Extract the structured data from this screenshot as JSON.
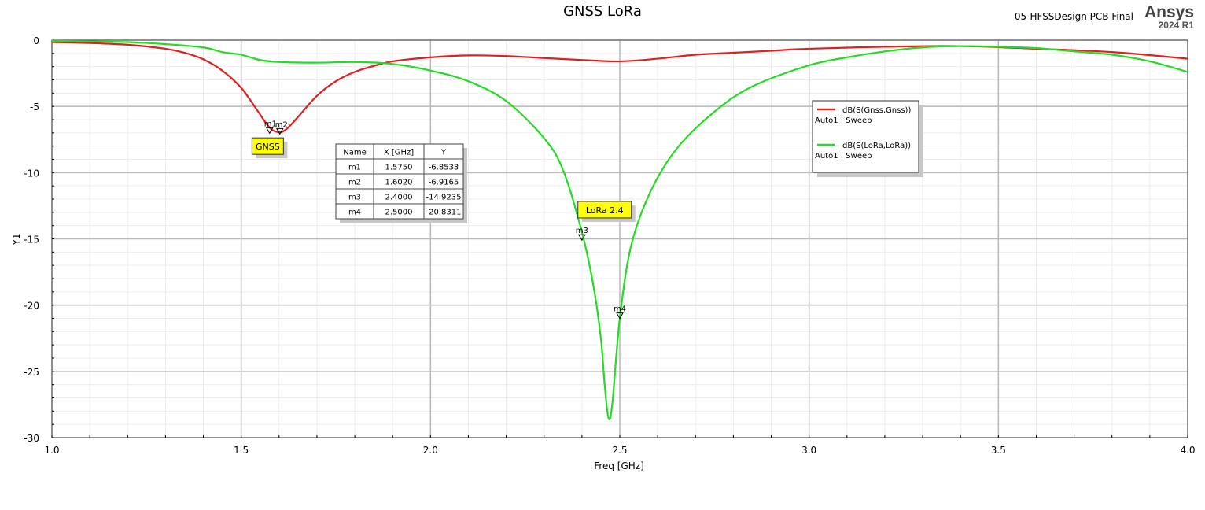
{
  "header": {
    "design_name": "05-HFSSDesign PCB Final",
    "brand": "Ansys",
    "version": "2024 R1"
  },
  "chart_data": {
    "type": "line",
    "title": "GNSS LoRa",
    "xlabel": "Freq [GHz]",
    "ylabel": "Y1",
    "xlim": [
      1.0,
      4.0
    ],
    "ylim": [
      -30,
      0
    ],
    "x_ticks": [
      "1.0",
      "1.5",
      "2.0",
      "2.5",
      "3.0",
      "3.5",
      "4.0"
    ],
    "y_ticks": [
      "0",
      "-5",
      "-10",
      "-15",
      "-20",
      "-25",
      "-30"
    ],
    "grid": true,
    "legend_position": "right",
    "series": [
      {
        "name": "dB(S(Gnss,Gnss))",
        "sub": "Auto1 : Sweep",
        "color": "#e02020",
        "points": [
          [
            1.0,
            -0.15
          ],
          [
            1.1,
            -0.22
          ],
          [
            1.2,
            -0.35
          ],
          [
            1.3,
            -0.65
          ],
          [
            1.35,
            -0.95
          ],
          [
            1.4,
            -1.45
          ],
          [
            1.45,
            -2.3
          ],
          [
            1.5,
            -3.6
          ],
          [
            1.54,
            -5.2
          ],
          [
            1.575,
            -6.6
          ],
          [
            1.6,
            -6.95
          ],
          [
            1.62,
            -6.7
          ],
          [
            1.65,
            -5.8
          ],
          [
            1.7,
            -4.2
          ],
          [
            1.75,
            -3.1
          ],
          [
            1.8,
            -2.4
          ],
          [
            1.85,
            -1.95
          ],
          [
            1.9,
            -1.6
          ],
          [
            2.0,
            -1.3
          ],
          [
            2.1,
            -1.15
          ],
          [
            2.2,
            -1.2
          ],
          [
            2.3,
            -1.35
          ],
          [
            2.4,
            -1.5
          ],
          [
            2.5,
            -1.6
          ],
          [
            2.6,
            -1.4
          ],
          [
            2.7,
            -1.1
          ],
          [
            2.8,
            -0.95
          ],
          [
            2.9,
            -0.8
          ],
          [
            3.0,
            -0.65
          ],
          [
            3.2,
            -0.5
          ],
          [
            3.4,
            -0.45
          ],
          [
            3.6,
            -0.65
          ],
          [
            3.8,
            -0.9
          ],
          [
            4.0,
            -1.4
          ]
        ]
      },
      {
        "name": "dB(S(LoRa,LoRa))",
        "sub": "Auto1 : Sweep",
        "color": "#22dd22",
        "points": [
          [
            1.0,
            -0.05
          ],
          [
            1.2,
            -0.15
          ],
          [
            1.3,
            -0.3
          ],
          [
            1.4,
            -0.55
          ],
          [
            1.45,
            -0.9
          ],
          [
            1.5,
            -1.1
          ],
          [
            1.55,
            -1.5
          ],
          [
            1.6,
            -1.65
          ],
          [
            1.7,
            -1.7
          ],
          [
            1.8,
            -1.65
          ],
          [
            1.9,
            -1.8
          ],
          [
            2.0,
            -2.3
          ],
          [
            2.1,
            -3.1
          ],
          [
            2.2,
            -4.6
          ],
          [
            2.3,
            -7.4
          ],
          [
            2.35,
            -9.8
          ],
          [
            2.4,
            -14.5
          ],
          [
            2.43,
            -18.5
          ],
          [
            2.45,
            -22.5
          ],
          [
            2.46,
            -26.0
          ],
          [
            2.47,
            -28.5
          ],
          [
            2.48,
            -27.5
          ],
          [
            2.5,
            -21.0
          ],
          [
            2.53,
            -15.5
          ],
          [
            2.58,
            -11.5
          ],
          [
            2.65,
            -8.2
          ],
          [
            2.75,
            -5.4
          ],
          [
            2.85,
            -3.5
          ],
          [
            3.0,
            -1.9
          ],
          [
            3.1,
            -1.3
          ],
          [
            3.2,
            -0.85
          ],
          [
            3.3,
            -0.55
          ],
          [
            3.4,
            -0.45
          ],
          [
            3.5,
            -0.5
          ],
          [
            3.6,
            -0.6
          ],
          [
            3.7,
            -0.85
          ],
          [
            3.8,
            -1.1
          ],
          [
            3.9,
            -1.6
          ],
          [
            4.0,
            -2.4
          ]
        ]
      }
    ],
    "markers": [
      {
        "name": "m1",
        "x": 1.575,
        "y": -6.8533,
        "label_side": "left",
        "series": 0
      },
      {
        "name": "m2",
        "x": 1.602,
        "y": -6.9165,
        "label_side": "right",
        "series": 0
      },
      {
        "name": "m3",
        "x": 2.4,
        "y": -14.9235,
        "label_side": "center",
        "series": 1
      },
      {
        "name": "m4",
        "x": 2.5,
        "y": -20.8311,
        "label_side": "center",
        "series": 1
      }
    ],
    "marker_table": {
      "headers": [
        "Name",
        "X [GHz]",
        "Y"
      ],
      "rows": [
        [
          "m1",
          "1.5750",
          "-6.8533"
        ],
        [
          "m2",
          "1.6020",
          "-6.9165"
        ],
        [
          "m3",
          "2.4000",
          "-14.9235"
        ],
        [
          "m4",
          "2.5000",
          "-20.8311"
        ]
      ]
    },
    "annotations": [
      {
        "text": "GNSS",
        "color": "#ffff00",
        "anchor_x": 1.57,
        "anchor_y": -8.0
      },
      {
        "text": "LoRa 2.4",
        "color": "#ffff00",
        "anchor_x": 2.46,
        "anchor_y": -12.8
      }
    ]
  }
}
